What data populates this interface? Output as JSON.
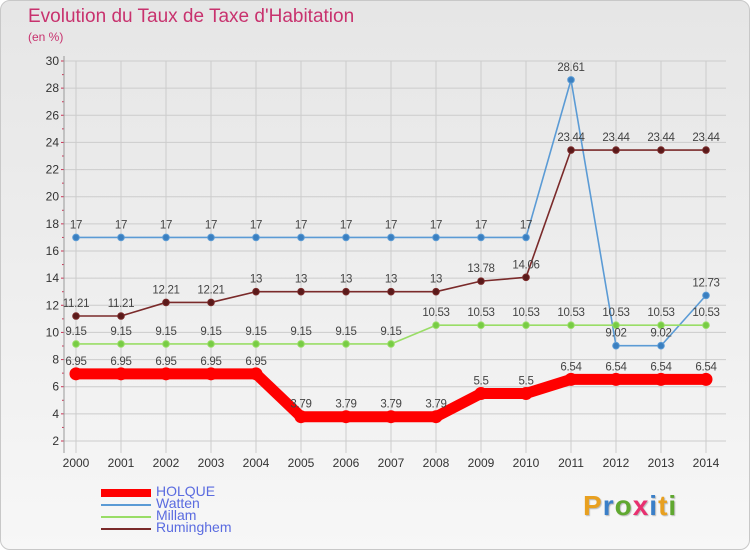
{
  "header": {
    "title": "Evolution du Taux de Taxe d'Habitation",
    "unit": "(en %)"
  },
  "logo": {
    "text": "Proxiti",
    "letters": [
      "P",
      "r",
      "o",
      "x",
      "i",
      "t",
      "i"
    ],
    "colors": [
      "#e8a020",
      "#3a7fc8",
      "#60a830",
      "#e83070",
      "#3a7fc8",
      "#e8a020",
      "#60a830"
    ]
  },
  "colors": {
    "title": "#c8326e",
    "legend_text": "#5a6be0",
    "axis_text": "#333333",
    "grid": "#cccccc"
  },
  "chart_data": {
    "type": "line",
    "x": [
      "2000",
      "2001",
      "2002",
      "2003",
      "2004",
      "2005",
      "2006",
      "2007",
      "2008",
      "2009",
      "2010",
      "2011",
      "2012",
      "2013",
      "2014"
    ],
    "ylim": [
      2,
      30
    ],
    "yticks": [
      2,
      4,
      6,
      8,
      10,
      12,
      14,
      16,
      18,
      20,
      22,
      24,
      26,
      28,
      30
    ],
    "grid": true,
    "legend_position": "bottom-left",
    "series": [
      {
        "name": "HOLQUE",
        "color": "#ff0000",
        "values": [
          6.95,
          6.95,
          6.95,
          6.95,
          6.95,
          3.79,
          3.79,
          3.79,
          3.79,
          5.5,
          5.5,
          6.54,
          6.54,
          6.54,
          6.54
        ],
        "labels": [
          "6.95",
          "6.95",
          "6.95",
          "6.95",
          "6.95",
          "3.79",
          "3.79",
          "3.79",
          "3.79",
          "5.5",
          "5.5",
          "6.54",
          "6.54",
          "6.54",
          "6.54"
        ]
      },
      {
        "name": "Watten",
        "color": "#5b9bd5",
        "marker_color": "#3a7fc0",
        "values": [
          17,
          17,
          17,
          17,
          17,
          17,
          17,
          17,
          17,
          17,
          17,
          28.61,
          9.02,
          9.02,
          12.73
        ],
        "labels": [
          "17",
          "17",
          "17",
          "17",
          "17",
          "17",
          "17",
          "17",
          "17",
          "17",
          "17",
          "28.61",
          "9.02",
          "9.02",
          "12.73"
        ]
      },
      {
        "name": "Millam",
        "color": "#99dd66",
        "marker_color": "#77cc44",
        "values": [
          9.15,
          9.15,
          9.15,
          9.15,
          9.15,
          9.15,
          9.15,
          9.15,
          10.53,
          10.53,
          10.53,
          10.53,
          10.53,
          10.53,
          10.53
        ],
        "labels": [
          "9.15",
          "9.15",
          "9.15",
          "9.15",
          "9.15",
          "9.15",
          "9.15",
          "9.15",
          "10.53",
          "10.53",
          "10.53",
          "10.53",
          "10.53",
          "10.53",
          "10.53"
        ]
      },
      {
        "name": "Ruminghem",
        "color": "#7a2a2a",
        "marker_color": "#5a1a1a",
        "values": [
          11.21,
          11.21,
          12.21,
          12.21,
          13,
          13,
          13,
          13,
          13,
          13.78,
          14.06,
          23.44,
          23.44,
          23.44,
          23.44
        ],
        "labels": [
          "11.21",
          "11.21",
          "12.21",
          "12.21",
          "13",
          "13",
          "13",
          "13",
          "13",
          "13.78",
          "14.06",
          "23.44",
          "23.44",
          "23.44",
          "23.44"
        ]
      }
    ]
  }
}
